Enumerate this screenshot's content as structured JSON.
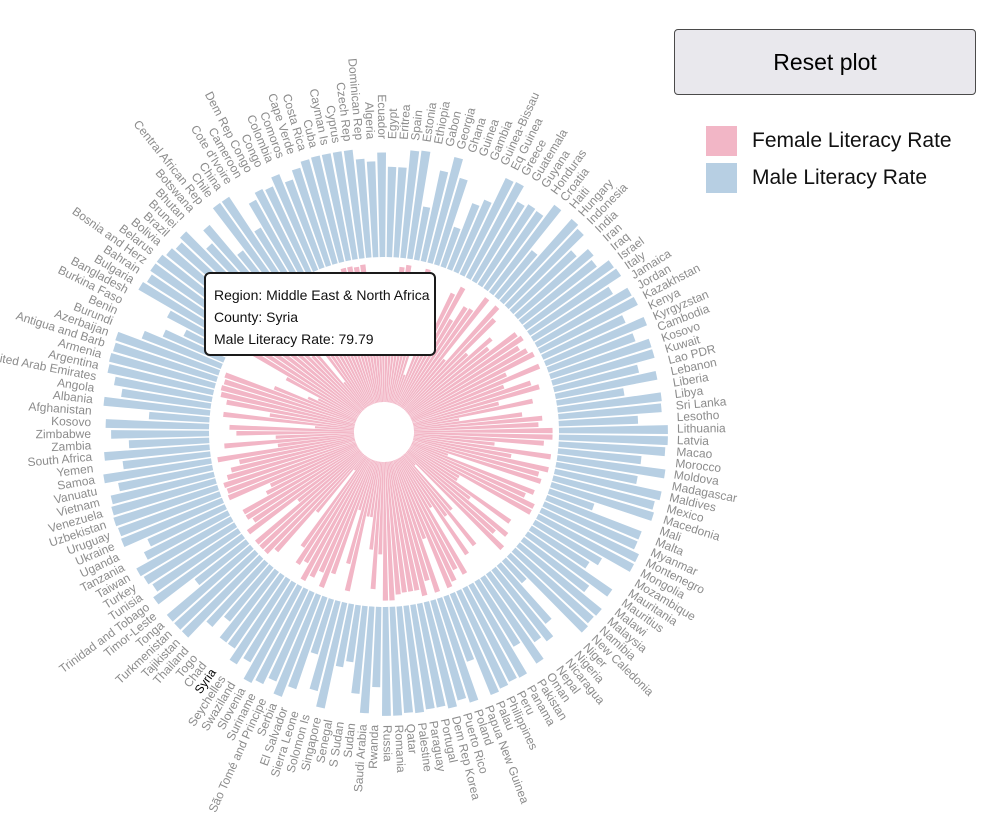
{
  "controls": {
    "reset_label": "Reset plot"
  },
  "legend": [
    {
      "label": "Female Literacy Rate",
      "color": "#f2b6c6"
    },
    {
      "label": "Male Literacy Rate",
      "color": "#b7cfe3"
    }
  ],
  "tooltip": {
    "region_label": "Region: Middle East & North Africa",
    "country_label": "County: Syria",
    "value_label": "Male Literacy Rate: 79.79"
  },
  "chart_data": {
    "type": "bar",
    "layout": "radial",
    "y_scale_max": 100,
    "highlighted": "Syria",
    "series": [
      {
        "name": "Female Literacy Rate",
        "color": "#f2b6c6"
      },
      {
        "name": "Male Literacy Rate",
        "color": "#b7cfe3"
      }
    ],
    "categories": [
      "Afghanistan",
      "Albania",
      "Angola",
      "United Arab Emirates",
      "Argentina",
      "Armenia",
      "Antigua and Barb",
      "Azerbaijan",
      "Burundi",
      "Benin",
      "Burkina Faso",
      "Bangladesh",
      "Bulgaria",
      "Bahrain",
      "Bosnia and Herz",
      "Belarus",
      "Bolivia",
      "Brazil",
      "Brunei",
      "Bhutan",
      "Botswana",
      "Central African Rep",
      "Chile",
      "China",
      "Cote d'Ivoire",
      "Cameroon",
      "Dem Rep Congo",
      "Congo",
      "Colombia",
      "Comoros",
      "Cape Verde",
      "Costa Rica",
      "Cuba",
      "Cayman Is",
      "Cyprus",
      "Czech Rep",
      "Dominican Rep",
      "Algeria",
      "Ecuador",
      "Egypt",
      "Eritrea",
      "Spain",
      "Estonia",
      "Ethiopia",
      "Gabon",
      "Georgia",
      "Ghana",
      "Guinea",
      "Gambia",
      "Guinea-Bissau",
      "Eq Guinea",
      "Greece",
      "Guatemala",
      "Guyana",
      "Honduras",
      "Croatia",
      "Haiti",
      "Hungary",
      "Indonesia",
      "India",
      "Iran",
      "Iraq",
      "Israel",
      "Italy",
      "Jamaica",
      "Jordan",
      "Kazakhstan",
      "Kenya",
      "Kyrgyzstan",
      "Cambodia",
      "Kosovo",
      "Kuwait",
      "Lao PDR",
      "Lebanon",
      "Liberia",
      "Libya",
      "Sri Lanka",
      "Lesotho",
      "Lithuania",
      "Latvia",
      "Macao",
      "Morocco",
      "Moldova",
      "Madagascar",
      "Maldives",
      "Mexico",
      "Macedonia",
      "Mali",
      "Malta",
      "Myanmar",
      "Montenegro",
      "Mongolia",
      "Mozambique",
      "Mauritania",
      "Mauritius",
      "Malawi",
      "Malaysia",
      "Namibia",
      "New Caledonia",
      "Niger",
      "Nigeria",
      "Nicaragua",
      "Nepal",
      "Oman",
      "Pakistan",
      "Panama",
      "Peru",
      "Philippines",
      "Palau",
      "Papua New Guinea",
      "Poland",
      "Puerto Rico",
      "Dem Rep Korea",
      "Portugal",
      "Paraguay",
      "Palestine",
      "Qatar",
      "Romania",
      "Russia",
      "Rwanda",
      "Saudi Arabia",
      "Sudan",
      "S Sudan",
      "Senegal",
      "Singapore",
      "Solomon Is",
      "Sierra Leone",
      "El Salvador",
      "Serbia",
      "São Tomé and Principe",
      "Suriname",
      "Slovenia",
      "Swaziland",
      "Seychelles",
      "Syria",
      "Chad",
      "Togo",
      "Thailand",
      "Tajikistan",
      "Turkmenistan",
      "Tonga",
      "Timor-Leste",
      "Trinidad and Tobago",
      "Tunisia",
      "Turkey",
      "Taiwan",
      "Tanzania",
      "Uganda",
      "Ukraine",
      "Uruguay",
      "Uzbekistan",
      "Venezuela",
      "Vietnam",
      "Vanuatu",
      "Samoa",
      "Yemen",
      "South Africa",
      "Zambia",
      "Zimbabwe",
      "Kosovo"
    ],
    "female": [
      28,
      94,
      61,
      93,
      98,
      99,
      98,
      99,
      63,
      38,
      31,
      58,
      98,
      93,
      97,
      99,
      90,
      93,
      95,
      53,
      89,
      24,
      97,
      92,
      47,
      69,
      66,
      74,
      94,
      78,
      85,
      97,
      99,
      99,
      98,
      99,
      91,
      70,
      92,
      68,
      64,
      97,
      99,
      34,
      80,
      99,
      73,
      22,
      47,
      44,
      89,
      96,
      72,
      85,
      86,
      99,
      46,
      99,
      91,
      60,
      80,
      74,
      96,
      98,
      92,
      96,
      99,
      75,
      99,
      70,
      89,
      94,
      63,
      87,
      33,
      78,
      92,
      89,
      99,
      99,
      93,
      58,
      99,
      71,
      99,
      93,
      96,
      27,
      94,
      89,
      98,
      98,
      41,
      41,
      89,
      56,
      93,
      85,
      97,
      11,
      52,
      82,
      53,
      84,
      42,
      95,
      89,
      96,
      99,
      60,
      99,
      89,
      99,
      94,
      94,
      94,
      95,
      99,
      99,
      66,
      91,
      63,
      40,
      40,
      95,
      76,
      37,
      86,
      98,
      88,
      94,
      99,
      87,
      91,
      79,
      13,
      53,
      93,
      99,
      99,
      99,
      57,
      99,
      91,
      94,
      94,
      73,
      68,
      99,
      98,
      99,
      95,
      91,
      84,
      99,
      55,
      93,
      56,
      84,
      89
    ],
    "male": [
      55,
      97,
      82,
      90,
      98,
      99,
      98,
      99,
      77,
      60,
      43,
      64,
      99,
      96,
      99,
      99,
      96,
      93,
      97,
      73,
      87,
      50,
      97,
      97,
      58,
      82,
      88,
      86,
      94,
      85,
      93,
      98,
      99,
      99,
      99,
      99,
      90,
      87,
      95,
      82,
      82,
      98,
      99,
      49,
      84,
      99,
      82,
      38,
      64,
      71,
      97,
      98,
      83,
      86,
      85,
      99,
      54,
      99,
      96,
      78,
      90,
      86,
      98,
      99,
      84,
      98,
      99,
      82,
      99,
      84,
      96,
      96,
      79,
      94,
      62,
      95,
      94,
      72,
      99,
      99,
      97,
      76,
      99,
      75,
      99,
      95,
      97,
      43,
      92,
      92,
      98,
      98,
      70,
      62,
      93,
      74,
      96,
      95,
      97,
      27,
      69,
      82,
      76,
      93,
      69,
      96,
      95,
      97,
      99,
      63,
      99,
      94,
      99,
      96,
      96,
      98,
      97,
      99,
      99,
      73,
      97,
      80,
      52,
      58,
      98,
      84,
      52,
      88,
      99,
      88,
      95,
      99,
      83,
      91,
      80,
      80,
      63,
      77,
      99,
      99,
      99,
      59,
      99,
      93,
      96,
      98,
      85,
      77,
      99,
      98,
      99,
      98,
      96,
      87,
      99,
      80,
      96,
      73,
      89,
      94
    ]
  }
}
